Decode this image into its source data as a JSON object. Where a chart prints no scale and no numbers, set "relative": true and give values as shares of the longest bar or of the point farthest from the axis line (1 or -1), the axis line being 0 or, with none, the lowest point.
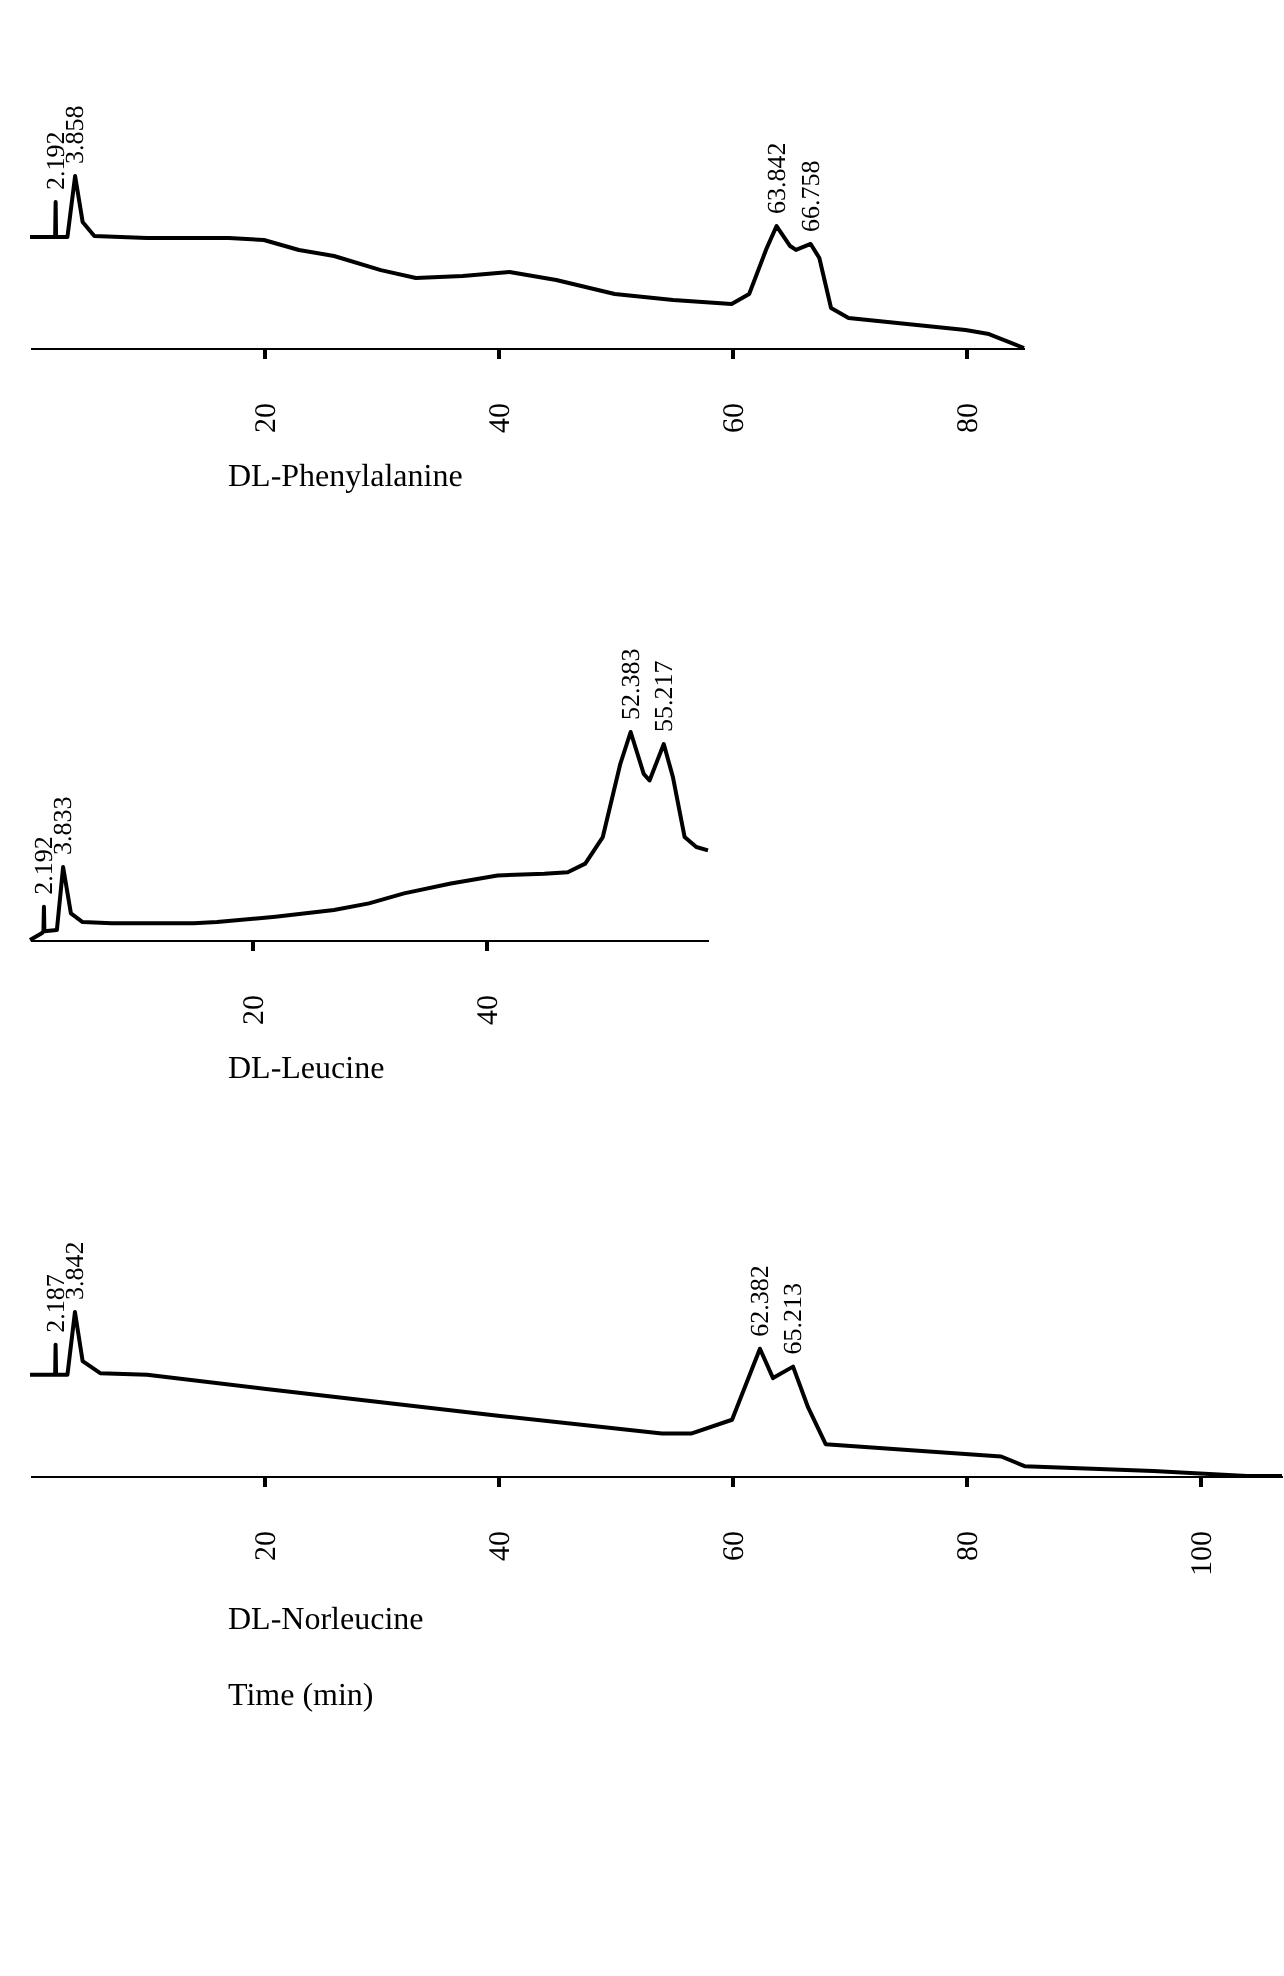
{
  "chart_data": [
    {
      "type": "line",
      "title": "DL-Phenylalanine",
      "relative": true,
      "xlim": [
        0,
        85
      ],
      "xticks": [
        20,
        40,
        60,
        80
      ],
      "x": [
        0,
        2.0,
        2.15,
        2.192,
        2.23,
        3.2,
        3.858,
        4.5,
        5.5,
        10,
        17,
        20,
        23,
        26,
        30,
        33,
        37,
        41,
        45,
        50,
        55,
        60,
        61.5,
        63,
        63.842,
        65,
        65.5,
        66.758,
        67.5,
        68.5,
        70,
        75,
        80,
        82,
        85
      ],
      "series": [
        {
          "color": "#000000",
          "values": [
            0.645,
            0.645,
            0.645,
            0.849,
            0.645,
            0.645,
            1,
            0.733,
            0.651,
            0.64,
            0.64,
            0.628,
            0.57,
            0.535,
            0.453,
            0.407,
            0.419,
            0.442,
            0.395,
            0.314,
            0.279,
            0.256,
            0.314,
            0.581,
            0.709,
            0.593,
            0.57,
            0.605,
            0.523,
            0.233,
            0.174,
            0.14,
            0.105,
            0.081,
            0
          ]
        }
      ],
      "annotations": [
        {
          "text": "2.192",
          "x": 2.192,
          "y": 0.849
        },
        {
          "text": "3.858",
          "x": 3.858,
          "y": 1
        },
        {
          "text": "63.842",
          "x": 63.842,
          "y": 0.709
        },
        {
          "text": "66.758",
          "x": 66.758,
          "y": 0.605
        }
      ]
    },
    {
      "type": "line",
      "title": "DL-Leucine",
      "relative": true,
      "xlim": [
        1,
        59
      ],
      "xticks": [
        20,
        40
      ],
      "x": [
        1,
        2.0,
        2.15,
        2.192,
        2.23,
        3.3,
        3.833,
        4.5,
        5.5,
        8,
        15,
        17,
        22,
        27,
        30,
        33,
        37,
        41,
        45,
        47,
        48.5,
        50,
        51.5,
        52.383,
        53.5,
        54,
        55.217,
        56,
        57,
        58,
        59
      ],
      "series": [
        {
          "color": "#000000",
          "values": [
            0,
            0.032,
            0.042,
            0.16,
            0.042,
            0.048,
            0.351,
            0.128,
            0.086,
            0.08,
            0.08,
            0.086,
            0.112,
            0.144,
            0.176,
            0.224,
            0.272,
            0.31,
            0.319,
            0.326,
            0.367,
            0.495,
            0.847,
            1,
            0.799,
            0.767,
            0.942,
            0.783,
            0.495,
            0.447,
            0.431
          ]
        }
      ],
      "annotations": [
        {
          "text": "2.192",
          "x": 2.192,
          "y": 0.16
        },
        {
          "text": "3.833",
          "x": 3.833,
          "y": 0.351
        },
        {
          "text": "52.383",
          "x": 52.383,
          "y": 1
        },
        {
          "text": "55.217",
          "x": 55.217,
          "y": 0.942
        }
      ]
    },
    {
      "type": "line",
      "title": "DL-Norleucine",
      "xlabel": "Time (min)",
      "relative": true,
      "xlim": [
        0,
        107
      ],
      "xticks": [
        20,
        40,
        60,
        80,
        100
      ],
      "x": [
        0,
        2.0,
        2.15,
        2.187,
        2.23,
        3.2,
        3.842,
        4.5,
        6,
        10,
        20,
        40,
        54,
        56.5,
        60,
        62.382,
        63.5,
        65.213,
        66.5,
        68,
        75,
        83,
        85,
        96,
        104,
        107
      ],
      "series": [
        {
          "color": "#000000",
          "values": [
            0.617,
            0.617,
            0.617,
            0.801,
            0.617,
            0.617,
            1,
            0.7,
            0.627,
            0.617,
            0.532,
            0.368,
            0.259,
            0.259,
            0.343,
            0.776,
            0.597,
            0.667,
            0.418,
            0.194,
            0.159,
            0.119,
            0.06,
            0.03,
            0,
            0
          ]
        }
      ],
      "annotations": [
        {
          "text": "2.187",
          "x": 2.187,
          "y": 0.801
        },
        {
          "text": "3.842",
          "x": 3.842,
          "y": 1
        },
        {
          "text": "62.382",
          "x": 62.382,
          "y": 0.776
        },
        {
          "text": "65.213",
          "x": 65.213,
          "y": 0.667
        }
      ]
    }
  ]
}
